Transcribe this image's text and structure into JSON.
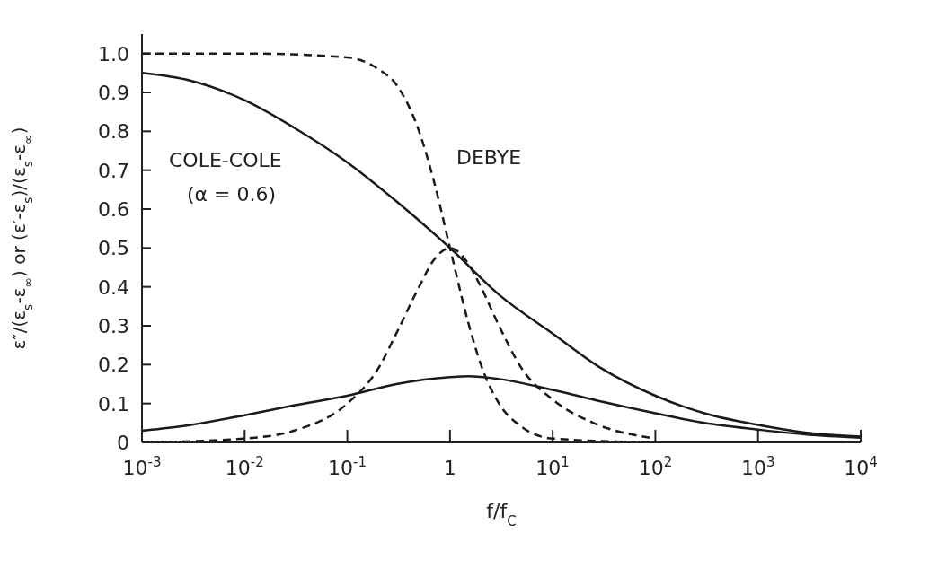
{
  "chart_data": {
    "type": "line",
    "xlabel": "f/f$_{C}$",
    "ylabel": "ε″/(ε$_{s}$-ε$_{∞}$) or (ε′-ε$_{s}$)/(ε$_{s}$-ε$_{∞}$)",
    "log": "x",
    "grid": false,
    "legend": false,
    "marker": "none",
    "xlim": [
      0.001,
      10000
    ],
    "xticks": [
      {
        "value": 0.001,
        "label": "10$^{-3}$"
      },
      {
        "value": 0.01,
        "label": "10$^{-2}$"
      },
      {
        "value": 0.1,
        "label": "10$^{-1}$"
      },
      1,
      {
        "value": 10,
        "label": "10$^{1}$"
      },
      {
        "value": 100,
        "label": "10$^{2}$"
      },
      {
        "value": 1000,
        "label": "10$^{3}$"
      },
      {
        "value": 10000,
        "label": "10$^{4}$"
      }
    ],
    "ylim": [
      0,
      1.05
    ],
    "yticks": [
      0,
      0.1,
      0.2,
      0.3,
      0.4,
      0.5,
      0.6,
      0.7,
      0.8,
      0.9,
      {
        "value": 1,
        "label": "1.0"
      }
    ],
    "series": [
      {
        "color": "#1a1a1a",
        "line_style": "solid",
        "x": [
          0.001,
          0.003,
          0.01,
          0.03,
          0.1,
          0.3,
          1,
          3,
          10,
          30,
          100,
          300,
          1000,
          3000,
          10000
        ],
        "values": [
          0.95,
          0.93,
          0.88,
          0.81,
          0.72,
          0.62,
          0.5,
          0.38,
          0.28,
          0.19,
          0.12,
          0.075,
          0.045,
          0.025,
          0.015
        ]
      },
      {
        "color": "#1a1a1a",
        "line_style": "solid",
        "x": [
          0.001,
          0.003,
          0.01,
          0.03,
          0.1,
          0.3,
          1,
          1.5,
          3,
          10,
          30,
          100,
          300,
          1000,
          3000,
          10000
        ],
        "values": [
          0.03,
          0.045,
          0.07,
          0.095,
          0.12,
          0.15,
          0.168,
          0.17,
          0.163,
          0.135,
          0.105,
          0.075,
          0.05,
          0.033,
          0.02,
          0.012
        ]
      },
      {
        "color": "#1a1a1a",
        "line_style": "dashed",
        "x": [
          0.001,
          0.01,
          0.1,
          0.2,
          0.3,
          0.5,
          0.7,
          1,
          1.5,
          2,
          3,
          5,
          10,
          100
        ],
        "values": [
          1,
          1,
          0.99,
          0.96,
          0.92,
          0.8,
          0.67,
          0.5,
          0.31,
          0.2,
          0.1,
          0.04,
          0.01,
          0
        ]
      },
      {
        "color": "#1a1a1a",
        "line_style": "dashed",
        "x": [
          0.001,
          0.01,
          0.03,
          0.1,
          0.2,
          0.3,
          0.5,
          0.7,
          1,
          1.5,
          2,
          3,
          5,
          10,
          25,
          100
        ],
        "values": [
          0,
          0.01,
          0.03,
          0.1,
          0.19,
          0.28,
          0.4,
          0.47,
          0.5,
          0.46,
          0.4,
          0.3,
          0.19,
          0.11,
          0.05,
          0.01
        ]
      }
    ],
    "annotations": [
      "COLE-COLE",
      "(α = 0.6)",
      "DEBYE"
    ]
  }
}
